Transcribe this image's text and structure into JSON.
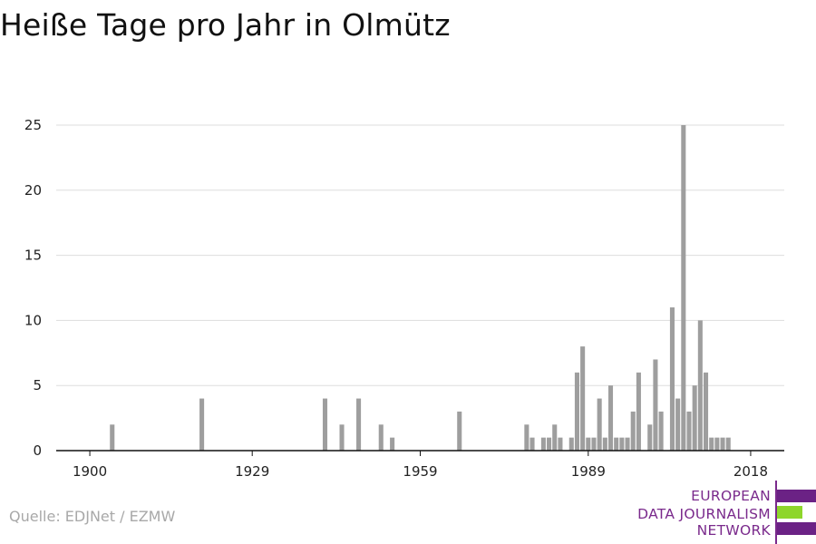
{
  "title": "Heiße Tage pro Jahr in Olmütz",
  "source": "Quelle: EDJNet / EZMW",
  "logo": {
    "lines": [
      "EUROPEAN",
      "DATA JOURNALISM",
      "NETWORK"
    ],
    "colors": {
      "text": "#7a2a8c",
      "bar_purple": "#6b2285",
      "bar_green": "#8ed62b"
    }
  },
  "colors": {
    "bar": "#9e9e9e",
    "grid": "#dddddd",
    "axis": "#111111"
  },
  "chart_data": {
    "type": "bar",
    "title": "Heiße Tage pro Jahr in Olmütz",
    "xlabel": "",
    "ylabel": "",
    "xlim": [
      1894,
      2024
    ],
    "ylim": [
      0,
      25
    ],
    "xticks": [
      1900,
      1929,
      1959,
      1989,
      2018
    ],
    "yticks": [
      0,
      5,
      10,
      15,
      20,
      25
    ],
    "grid": "horizontal",
    "x": [
      1904,
      1920,
      1942,
      1945,
      1948,
      1952,
      1954,
      1966,
      1978,
      1979,
      1981,
      1982,
      1983,
      1984,
      1986,
      1987,
      1988,
      1989,
      1990,
      1991,
      1992,
      1993,
      1994,
      1995,
      1996,
      1997,
      1998,
      2000,
      2001,
      2002,
      2004,
      2005,
      2006,
      2007,
      2008,
      2009,
      2010,
      2011,
      2012,
      2013,
      2014
    ],
    "values": [
      2,
      4,
      4,
      2,
      4,
      2,
      1,
      3,
      2,
      1,
      1,
      1,
      2,
      1,
      1,
      6,
      8,
      1,
      1,
      4,
      1,
      5,
      1,
      1,
      1,
      3,
      6,
      2,
      7,
      3,
      11,
      4,
      25,
      3,
      5,
      10,
      6,
      1,
      1,
      1,
      1
    ]
  }
}
